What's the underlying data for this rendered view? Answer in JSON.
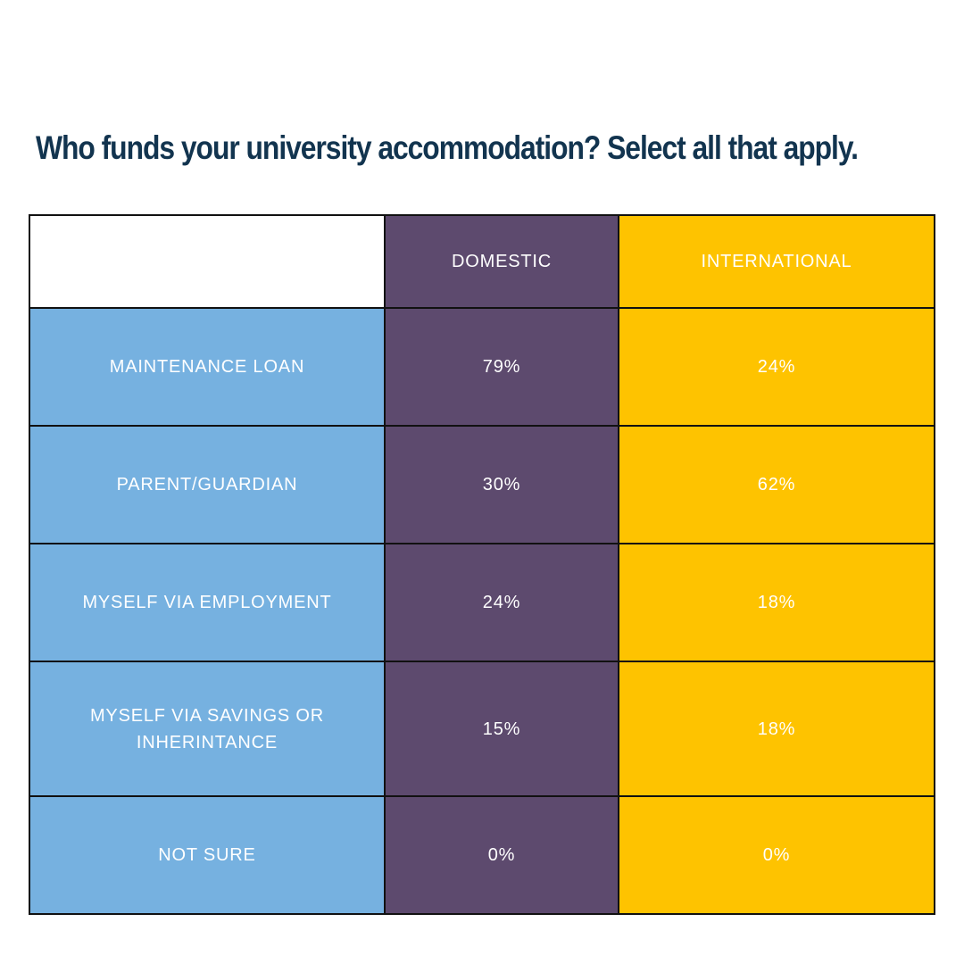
{
  "title": "Who funds your university accommodation? Select all that apply.",
  "colors": {
    "title": "#12344f",
    "label_bg": "#76b1e0",
    "domestic_bg": "#5d4a6e",
    "international_bg": "#fec300",
    "border": "#111111",
    "text": "#ffffff"
  },
  "chart_data": {
    "type": "table",
    "title": "Who funds your university accommodation? Select all that apply.",
    "columns": [
      "",
      "DOMESTIC",
      "INTERNATIONAL"
    ],
    "rows": [
      {
        "label": "MAINTENANCE LOAN",
        "domestic": "79%",
        "international": "24%"
      },
      {
        "label": "PARENT/GUARDIAN",
        "domestic": "30%",
        "international": "62%"
      },
      {
        "label": "MYSELF VIA EMPLOYMENT",
        "domestic": "24%",
        "international": "18%"
      },
      {
        "label": "MYSELF VIA SAVINGS OR INHERINTANCE",
        "domestic": "15%",
        "international": "18%"
      },
      {
        "label": "NOT SURE",
        "domestic": "0%",
        "international": "0%"
      }
    ]
  }
}
